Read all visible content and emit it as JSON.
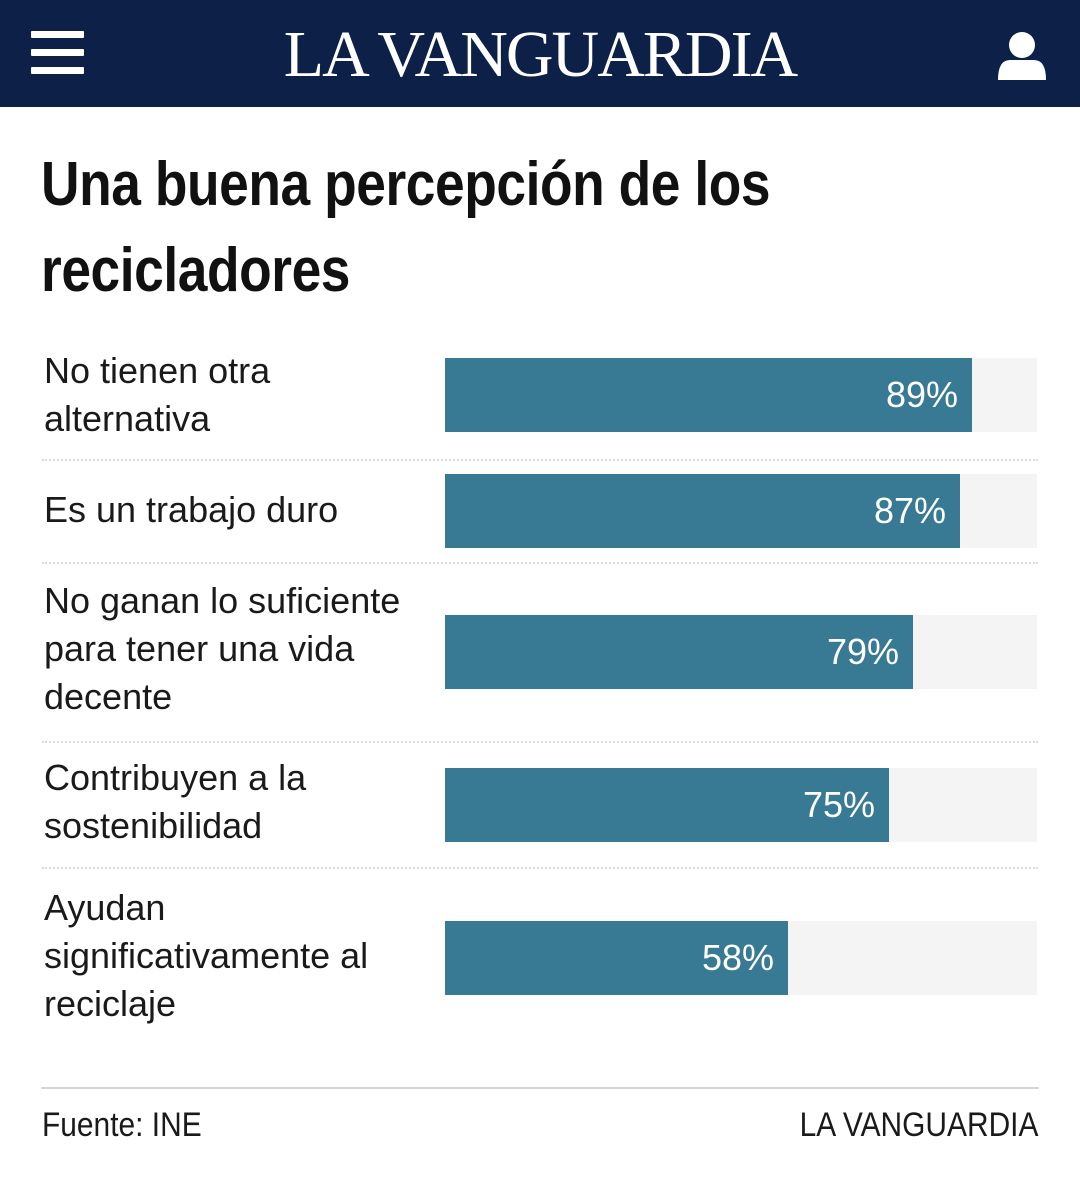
{
  "header": {
    "brand": "LA VANGUARDIA",
    "menu_icon": "hamburger-menu-icon",
    "user_icon": "user-account-icon",
    "background_color": "#0c2048"
  },
  "chart_data": {
    "type": "bar",
    "orientation": "horizontal",
    "title": "Una buena percepción de los recicladores",
    "categories": [
      "No tienen otra alternativa",
      "Es un trabajo duro",
      "No ganan lo suficiente para tener una vida decente",
      "Contribuyen a la sostenibilidad",
      "Ayudan significativamente al reciclaje"
    ],
    "values": [
      89,
      87,
      79,
      75,
      58
    ],
    "value_labels": [
      "89%",
      "87%",
      "79%",
      "75%",
      "58%"
    ],
    "unit": "%",
    "xlim": [
      0,
      100
    ],
    "bar_color": "#387a93",
    "track_color": "#f4f4f4",
    "xlabel": "",
    "ylabel": ""
  },
  "footer": {
    "source": "Fuente: INE",
    "brand": "LA VANGUARDIA"
  }
}
